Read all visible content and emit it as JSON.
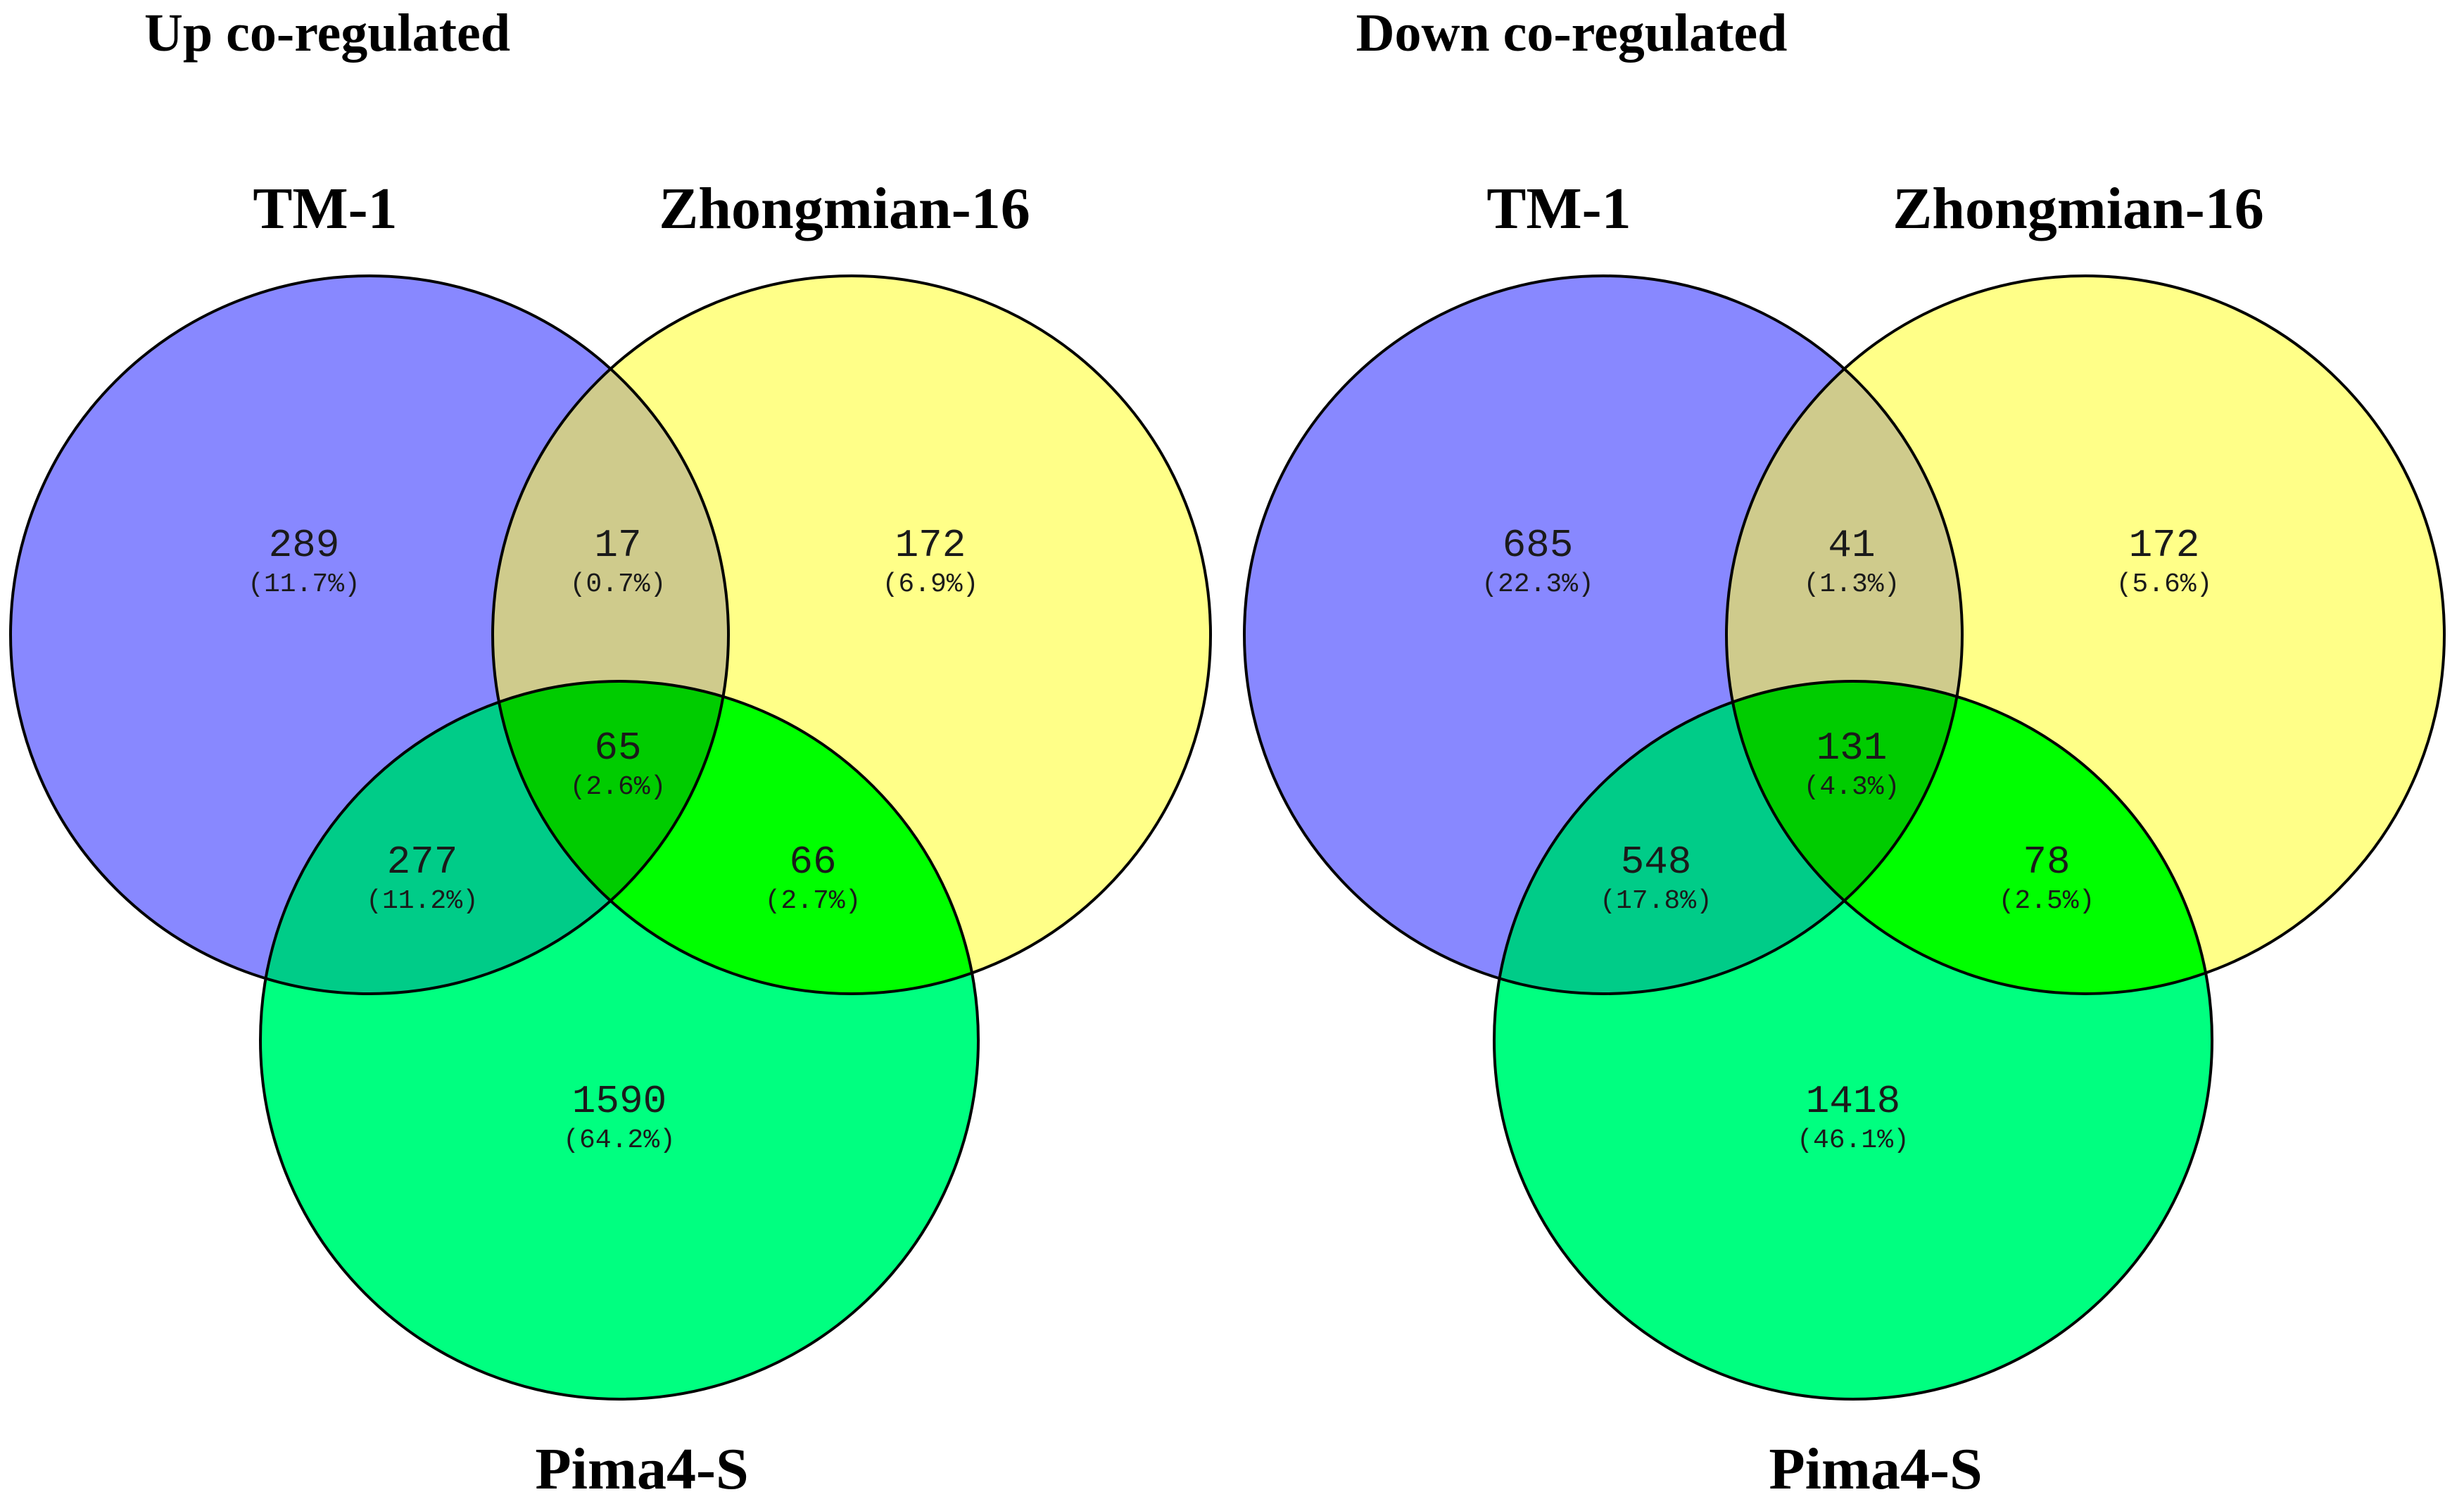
{
  "colors": {
    "set_a": "#8888ff",
    "set_b": "#ffff88",
    "set_c": "#00ff80",
    "ab": "#cfcb8c",
    "ac": "#00cc88",
    "bc": "#00ff00",
    "abc": "#00cc00",
    "outline": "#000000"
  },
  "panels": [
    {
      "title": "Up co-regulated",
      "set_labels": {
        "a": "TM-1",
        "b": "Zhongmian-16",
        "c": "Pima4-S"
      },
      "regions": {
        "a_only": {
          "count": "289",
          "pct": "(11.7%)"
        },
        "ab": {
          "count": "17",
          "pct": "(0.7%)"
        },
        "b_only": {
          "count": "172",
          "pct": "(6.9%)"
        },
        "abc": {
          "count": "65",
          "pct": "(2.6%)"
        },
        "ac": {
          "count": "277",
          "pct": "(11.2%)"
        },
        "bc": {
          "count": "66",
          "pct": "(2.7%)"
        },
        "c_only": {
          "count": "1590",
          "pct": "(64.2%)"
        }
      }
    },
    {
      "title": "Down co-regulated",
      "set_labels": {
        "a": "TM-1",
        "b": "Zhongmian-16",
        "c": "Pima4-S"
      },
      "regions": {
        "a_only": {
          "count": "685",
          "pct": "(22.3%)"
        },
        "ab": {
          "count": "41",
          "pct": "(1.3%)"
        },
        "b_only": {
          "count": "172",
          "pct": "(5.6%)"
        },
        "abc": {
          "count": "131",
          "pct": "(4.3%)"
        },
        "ac": {
          "count": "548",
          "pct": "(17.8%)"
        },
        "bc": {
          "count": "78",
          "pct": "(2.5%)"
        },
        "c_only": {
          "count": "1418",
          "pct": "(46.1%)"
        }
      }
    }
  ]
}
